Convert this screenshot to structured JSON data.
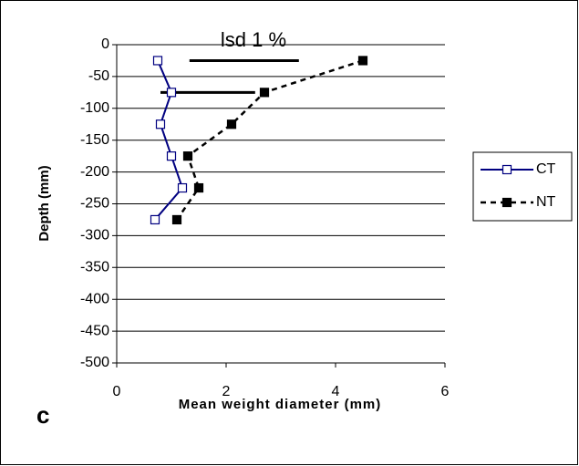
{
  "chart_data": {
    "type": "line",
    "panel_label": "c",
    "annotation": "lsd 1 %",
    "xlabel": "Mean weight diameter (mm)",
    "ylabel": "Depth (mm)",
    "xlim": [
      0,
      6
    ],
    "xticks": [
      0,
      2,
      4,
      6
    ],
    "ylim": [
      -500,
      0
    ],
    "yticks": [
      0,
      -50,
      -100,
      -150,
      -200,
      -250,
      -300,
      -350,
      -400,
      -450,
      -500
    ],
    "grid": true,
    "legend": "right",
    "series": [
      {
        "name": "CT",
        "color": "#000080",
        "line_style": "solid",
        "marker": "open-square",
        "x": [
          0.75,
          1.0,
          0.8,
          1.0,
          1.2,
          0.7
        ],
        "values": [
          -25,
          -75,
          -125,
          -175,
          -225,
          -275
        ]
      },
      {
        "name": "NT",
        "color": "#000000",
        "line_style": "dashed",
        "marker": "filled-square",
        "x": [
          4.5,
          2.7,
          2.1,
          1.3,
          1.5,
          1.1
        ],
        "values": [
          -25,
          -75,
          -125,
          -175,
          -225,
          -275
        ]
      }
    ],
    "lsd_bars": [
      {
        "x": [
          1.33,
          3.33
        ],
        "y": -25
      },
      {
        "x": [
          0.8,
          2.53
        ],
        "y": -75
      }
    ]
  }
}
